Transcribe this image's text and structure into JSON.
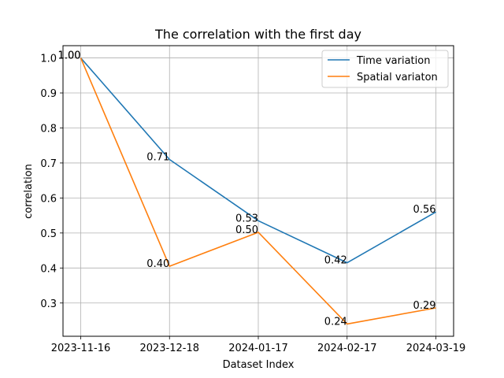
{
  "chart_data": {
    "type": "line",
    "title": "The correlation with the first day",
    "xlabel": "Dataset Index",
    "ylabel": "correlation",
    "categories": [
      "2023-11-16",
      "2023-12-18",
      "2024-01-17",
      "2024-02-17",
      "2024-03-19"
    ],
    "ylim": [
      0.205,
      1.035
    ],
    "yticks": [
      0.3,
      0.4,
      0.5,
      0.6,
      0.7,
      0.8,
      0.9,
      1.0
    ],
    "ytick_labels": [
      "0.3",
      "0.4",
      "0.5",
      "0.6",
      "0.7",
      "0.8",
      "0.9",
      "1.0"
    ],
    "grid": true,
    "legend_position": "top-right",
    "series": [
      {
        "name": "Time variation",
        "color": "#1f77b4",
        "values": [
          1.0,
          0.71,
          0.535,
          0.415,
          0.56
        ],
        "labels": [
          "1.00",
          "0.71",
          "0.53",
          "0.42",
          "0.56"
        ]
      },
      {
        "name": "Spatial variaton",
        "color": "#ff7f0e",
        "values": [
          1.0,
          0.405,
          0.502,
          0.24,
          0.286
        ],
        "labels": [
          "1.00",
          "0.40",
          "0.50",
          "0.24",
          "0.29"
        ]
      }
    ]
  }
}
